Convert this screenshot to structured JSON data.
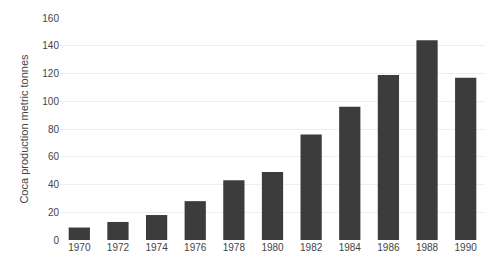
{
  "chart_data": {
    "type": "bar",
    "categories": [
      "1970",
      "1972",
      "1974",
      "1976",
      "1978",
      "1980",
      "1982",
      "1984",
      "1986",
      "1988",
      "1990"
    ],
    "values": [
      9,
      13,
      18,
      28,
      43,
      49,
      76,
      96,
      119,
      144,
      117
    ],
    "color": "#3c3c3c",
    "ylabel": "Coca production metric tonnes",
    "ylim": [
      0,
      160
    ],
    "yticks": [
      0,
      20,
      40,
      60,
      80,
      100,
      120,
      140,
      160
    ],
    "grid": true
  }
}
